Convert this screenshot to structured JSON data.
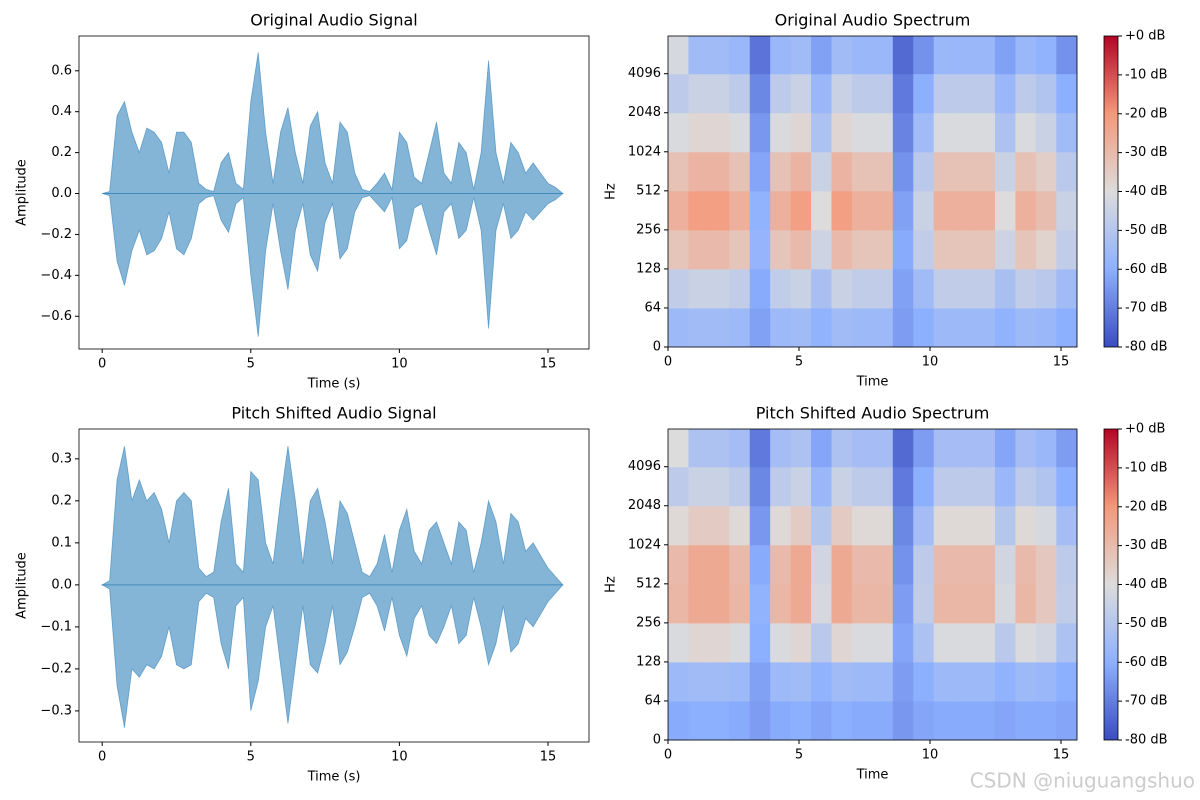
{
  "chart_data": [
    {
      "type": "area",
      "title": "Original Audio Signal",
      "xlabel": "Time (s)",
      "ylabel": "Amplitude",
      "color": "#1f77b4",
      "alpha": 0.55,
      "x": [
        0,
        0.25,
        0.5,
        0.75,
        1,
        1.25,
        1.5,
        1.75,
        2,
        2.25,
        2.5,
        2.75,
        3,
        3.25,
        3.5,
        3.75,
        4,
        4.25,
        4.5,
        4.75,
        5,
        5.25,
        5.5,
        5.75,
        6,
        6.25,
        6.5,
        6.75,
        7,
        7.25,
        7.5,
        7.75,
        8,
        8.25,
        8.5,
        8.75,
        9,
        9.25,
        9.5,
        9.75,
        10,
        10.25,
        10.5,
        10.75,
        11,
        11.25,
        11.5,
        11.75,
        12,
        12.25,
        12.5,
        12.75,
        13,
        13.25,
        13.5,
        13.75,
        14,
        14.25,
        14.5,
        14.75,
        15,
        15.25,
        15.5
      ],
      "ymax": [
        0,
        0.01,
        0.38,
        0.45,
        0.3,
        0.2,
        0.32,
        0.3,
        0.25,
        0.1,
        0.3,
        0.3,
        0.25,
        0.05,
        0.02,
        0.01,
        0.15,
        0.2,
        0.05,
        0.02,
        0.45,
        0.69,
        0.3,
        0.05,
        0.3,
        0.42,
        0.2,
        0.05,
        0.33,
        0.4,
        0.15,
        0.05,
        0.35,
        0.3,
        0.1,
        0.02,
        0.01,
        0.05,
        0.1,
        0.02,
        0.3,
        0.25,
        0.08,
        0.05,
        0.2,
        0.35,
        0.1,
        0.05,
        0.25,
        0.2,
        0.02,
        0.2,
        0.65,
        0.2,
        0.05,
        0.25,
        0.2,
        0.1,
        0.15,
        0.1,
        0.05,
        0.03,
        0
      ],
      "ymin": [
        0,
        -0.01,
        -0.33,
        -0.45,
        -0.28,
        -0.18,
        -0.3,
        -0.28,
        -0.22,
        -0.09,
        -0.27,
        -0.3,
        -0.22,
        -0.05,
        -0.02,
        -0.01,
        -0.13,
        -0.19,
        -0.05,
        -0.02,
        -0.4,
        -0.7,
        -0.28,
        -0.05,
        -0.28,
        -0.47,
        -0.18,
        -0.05,
        -0.3,
        -0.38,
        -0.14,
        -0.05,
        -0.32,
        -0.27,
        -0.09,
        -0.02,
        -0.01,
        -0.05,
        -0.09,
        -0.02,
        -0.27,
        -0.23,
        -0.07,
        -0.05,
        -0.18,
        -0.3,
        -0.09,
        -0.05,
        -0.22,
        -0.18,
        -0.02,
        -0.18,
        -0.66,
        -0.18,
        -0.05,
        -0.22,
        -0.18,
        -0.09,
        -0.13,
        -0.09,
        -0.05,
        -0.03,
        0
      ],
      "xlim": [
        -0.78,
        16.38
      ],
      "ylim": [
        -0.76,
        0.77
      ],
      "xticks": [
        0,
        5,
        10,
        15
      ],
      "yticks": [
        {
          "value": -0.6,
          "label": "−0.6"
        },
        {
          "value": -0.4,
          "label": "−0.4"
        },
        {
          "value": -0.2,
          "label": "−0.2"
        },
        {
          "value": 0,
          "label": "0.0"
        },
        {
          "value": 0.2,
          "label": "0.2"
        },
        {
          "value": 0.4,
          "label": "0.4"
        },
        {
          "value": 0.6,
          "label": "0.6"
        }
      ]
    },
    {
      "type": "heatmap",
      "title": "Original Audio Spectrum",
      "xlabel": "Time",
      "ylabel": "Hz",
      "colormap": "coolwarm",
      "yscale": "symlog",
      "linthresh": 64,
      "x_edges": [
        0,
        0.78,
        1.56,
        2.34,
        3.12,
        3.9,
        4.68,
        5.46,
        6.24,
        7.02,
        7.8,
        8.58,
        9.36,
        10.14,
        10.92,
        11.7,
        12.48,
        13.26,
        14.04,
        14.82,
        15.6
      ],
      "y_edges": [
        0,
        64,
        128,
        256,
        512,
        1024,
        2048,
        4096,
        8000
      ],
      "values": [
        [
          -56,
          -55,
          -55,
          -56,
          -63,
          -56,
          -55,
          -59,
          -55,
          -56,
          -56,
          -64,
          -60,
          -56,
          -56,
          -56,
          -59,
          -56,
          -57,
          -60
        ],
        [
          -47,
          -45,
          -45,
          -47,
          -61,
          -47,
          -45,
          -53,
          -45,
          -47,
          -47,
          -63,
          -55,
          -47,
          -47,
          -47,
          -53,
          -47,
          -49,
          -55
        ],
        [
          -33,
          -30,
          -30,
          -33,
          -58,
          -33,
          -30,
          -44,
          -30,
          -33,
          -33,
          -61,
          -47,
          -33,
          -33,
          -33,
          -44,
          -33,
          -37,
          -47
        ],
        [
          -27,
          -22,
          -22,
          -27,
          -59,
          -27,
          -22,
          -40,
          -22,
          -27,
          -27,
          -63,
          -45,
          -27,
          -27,
          -27,
          -40,
          -27,
          -31,
          -45
        ],
        [
          -32,
          -28,
          -28,
          -32,
          -62,
          -32,
          -28,
          -45,
          -28,
          -32,
          -32,
          -66,
          -49,
          -32,
          -32,
          -32,
          -45,
          -32,
          -36,
          -49
        ],
        [
          -41,
          -38,
          -38,
          -41,
          -65,
          -41,
          -38,
          -52,
          -38,
          -41,
          -41,
          -69,
          -55,
          -41,
          -41,
          -41,
          -52,
          -41,
          -45,
          -55
        ],
        [
          -48,
          -45,
          -45,
          -48,
          -68,
          -48,
          -45,
          -57,
          -45,
          -48,
          -48,
          -71,
          -60,
          -48,
          -48,
          -48,
          -57,
          -48,
          -51,
          -60
        ],
        [
          -42,
          -55,
          -55,
          -57,
          -72,
          -57,
          -55,
          -63,
          -55,
          -57,
          -57,
          -74,
          -66,
          -57,
          -57,
          -57,
          -63,
          -57,
          -59,
          -66
        ]
      ],
      "xlim": [
        0,
        15.61
      ],
      "ylim": [
        0,
        8000
      ],
      "xticks": [
        0,
        5,
        10,
        15
      ],
      "yticks": [
        0,
        64,
        128,
        256,
        512,
        1024,
        2048,
        4096
      ],
      "vlim": [
        -80,
        0
      ],
      "colorbar_ticks": [
        {
          "value": 0,
          "label": "+0 dB"
        },
        {
          "value": -10,
          "label": "-10 dB"
        },
        {
          "value": -20,
          "label": "-20 dB"
        },
        {
          "value": -30,
          "label": "-30 dB"
        },
        {
          "value": -40,
          "label": "-40 dB"
        },
        {
          "value": -50,
          "label": "-50 dB"
        },
        {
          "value": -60,
          "label": "-60 dB"
        },
        {
          "value": -70,
          "label": "-70 dB"
        },
        {
          "value": -80,
          "label": "-80 dB"
        }
      ]
    },
    {
      "type": "area",
      "title": "Pitch Shifted Audio Signal",
      "xlabel": "Time (s)",
      "ylabel": "Amplitude",
      "color": "#1f77b4",
      "alpha": 0.55,
      "x": [
        0,
        0.25,
        0.5,
        0.75,
        1,
        1.25,
        1.5,
        1.75,
        2,
        2.25,
        2.5,
        2.75,
        3,
        3.25,
        3.5,
        3.75,
        4,
        4.25,
        4.5,
        4.75,
        5,
        5.25,
        5.5,
        5.75,
        6,
        6.25,
        6.5,
        6.75,
        7,
        7.25,
        7.5,
        7.75,
        8,
        8.25,
        8.5,
        8.75,
        9,
        9.25,
        9.5,
        9.75,
        10,
        10.25,
        10.5,
        10.75,
        11,
        11.25,
        11.5,
        11.75,
        12,
        12.25,
        12.5,
        12.75,
        13,
        13.25,
        13.5,
        13.75,
        14,
        14.25,
        14.5,
        14.75,
        15,
        15.25,
        15.5
      ],
      "ymax": [
        0,
        0.01,
        0.25,
        0.33,
        0.2,
        0.25,
        0.2,
        0.22,
        0.18,
        0.1,
        0.2,
        0.22,
        0.2,
        0.04,
        0.02,
        0.03,
        0.15,
        0.23,
        0.05,
        0.03,
        0.27,
        0.25,
        0.1,
        0.05,
        0.2,
        0.33,
        0.2,
        0.05,
        0.2,
        0.23,
        0.15,
        0.05,
        0.2,
        0.17,
        0.1,
        0.03,
        0.02,
        0.05,
        0.12,
        0.03,
        0.13,
        0.18,
        0.08,
        0.05,
        0.13,
        0.15,
        0.1,
        0.05,
        0.15,
        0.13,
        0.03,
        0.1,
        0.2,
        0.15,
        0.05,
        0.17,
        0.15,
        0.08,
        0.1,
        0.07,
        0.04,
        0.02,
        0
      ],
      "ymin": [
        0,
        -0.01,
        -0.24,
        -0.34,
        -0.2,
        -0.22,
        -0.19,
        -0.2,
        -0.17,
        -0.1,
        -0.19,
        -0.2,
        -0.19,
        -0.04,
        -0.02,
        -0.03,
        -0.14,
        -0.2,
        -0.05,
        -0.03,
        -0.3,
        -0.23,
        -0.1,
        -0.05,
        -0.19,
        -0.33,
        -0.19,
        -0.05,
        -0.19,
        -0.21,
        -0.14,
        -0.05,
        -0.19,
        -0.16,
        -0.1,
        -0.03,
        -0.02,
        -0.05,
        -0.11,
        -0.03,
        -0.12,
        -0.17,
        -0.08,
        -0.05,
        -0.12,
        -0.14,
        -0.1,
        -0.05,
        -0.14,
        -0.12,
        -0.03,
        -0.1,
        -0.19,
        -0.14,
        -0.05,
        -0.16,
        -0.14,
        -0.08,
        -0.1,
        -0.07,
        -0.04,
        -0.02,
        0
      ],
      "xlim": [
        -0.78,
        16.38
      ],
      "ylim": [
        -0.374,
        0.371
      ],
      "xticks": [
        0,
        5,
        10,
        15
      ],
      "yticks": [
        {
          "value": -0.3,
          "label": "−0.3"
        },
        {
          "value": -0.2,
          "label": "−0.2"
        },
        {
          "value": -0.1,
          "label": "−0.1"
        },
        {
          "value": 0,
          "label": "0.0"
        },
        {
          "value": 0.1,
          "label": "0.1"
        },
        {
          "value": 0.2,
          "label": "0.2"
        },
        {
          "value": 0.3,
          "label": "0.3"
        }
      ]
    },
    {
      "type": "heatmap",
      "title": "Pitch Shifted Audio Spectrum",
      "xlabel": "Time",
      "ylabel": "Hz",
      "colormap": "coolwarm",
      "yscale": "symlog",
      "linthresh": 64,
      "x_edges": [
        0,
        0.78,
        1.56,
        2.34,
        3.12,
        3.9,
        4.68,
        5.46,
        6.24,
        7.02,
        7.8,
        8.58,
        9.36,
        10.14,
        10.92,
        11.7,
        12.48,
        13.26,
        14.04,
        14.82,
        15.6
      ],
      "y_edges": [
        0,
        64,
        128,
        256,
        512,
        1024,
        2048,
        4096,
        8000
      ],
      "values": [
        [
          -61,
          -60,
          -60,
          -61,
          -64,
          -61,
          -60,
          -62,
          -60,
          -61,
          -61,
          -65,
          -62,
          -61,
          -61,
          -61,
          -62,
          -61,
          -61,
          -62
        ],
        [
          -56,
          -55,
          -55,
          -56,
          -63,
          -56,
          -55,
          -59,
          -55,
          -56,
          -56,
          -64,
          -60,
          -56,
          -56,
          -56,
          -59,
          -56,
          -57,
          -60
        ],
        [
          -41,
          -38,
          -38,
          -41,
          -60,
          -41,
          -38,
          -49,
          -38,
          -41,
          -41,
          -62,
          -52,
          -41,
          -41,
          -41,
          -49,
          -41,
          -43,
          -52
        ],
        [
          -29,
          -25,
          -25,
          -29,
          -59,
          -29,
          -25,
          -42,
          -25,
          -29,
          -29,
          -64,
          -47,
          -29,
          -29,
          -29,
          -42,
          -29,
          -34,
          -47
        ],
        [
          -30,
          -25,
          -25,
          -30,
          -61,
          -30,
          -25,
          -43,
          -25,
          -30,
          -30,
          -66,
          -48,
          -30,
          -30,
          -30,
          -43,
          -30,
          -34,
          -48
        ],
        [
          -39,
          -35,
          -35,
          -39,
          -65,
          -39,
          -35,
          -50,
          -35,
          -39,
          -39,
          -68,
          -54,
          -39,
          -39,
          -39,
          -50,
          -39,
          -42,
          -54
        ],
        [
          -48,
          -45,
          -45,
          -48,
          -68,
          -48,
          -45,
          -57,
          -45,
          -48,
          -48,
          -71,
          -60,
          -48,
          -48,
          -48,
          -57,
          -48,
          -51,
          -60
        ],
        [
          -40,
          -52,
          -52,
          -54,
          -71,
          -54,
          -52,
          -62,
          -52,
          -54,
          -54,
          -74,
          -64,
          -54,
          -54,
          -54,
          -62,
          -54,
          -57,
          -64
        ]
      ],
      "xlim": [
        0,
        15.61
      ],
      "ylim": [
        0,
        8000
      ],
      "xticks": [
        0,
        5,
        10,
        15
      ],
      "yticks": [
        0,
        64,
        128,
        256,
        512,
        1024,
        2048,
        4096
      ],
      "vlim": [
        -80,
        0
      ],
      "colorbar_ticks": [
        {
          "value": 0,
          "label": "+0 dB"
        },
        {
          "value": -10,
          "label": "-10 dB"
        },
        {
          "value": -20,
          "label": "-20 dB"
        },
        {
          "value": -30,
          "label": "-30 dB"
        },
        {
          "value": -40,
          "label": "-40 dB"
        },
        {
          "value": -50,
          "label": "-50 dB"
        },
        {
          "value": -60,
          "label": "-60 dB"
        },
        {
          "value": -70,
          "label": "-70 dB"
        },
        {
          "value": -80,
          "label": "-80 dB"
        }
      ]
    }
  ],
  "watermark": "CSDN @niuguangshuo"
}
